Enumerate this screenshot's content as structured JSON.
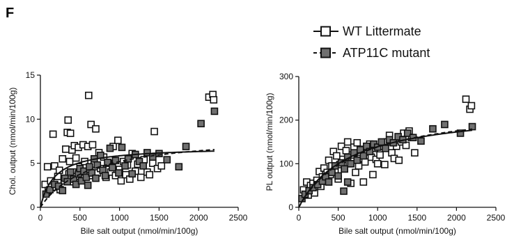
{
  "figure": {
    "panel_letter": "F"
  },
  "legend": [
    {
      "label": "WT Littermate",
      "fill": "#ffffff",
      "line": "solid"
    },
    {
      "label": "ATP11C mutant",
      "fill": "#707070",
      "line": "dashed"
    }
  ],
  "chart_data": [
    {
      "type": "scatter",
      "xlabel": "Bile salt output (nmol/min/100g)",
      "ylabel": "Chol. output (nmol/min/100g)",
      "xlim": [
        0,
        2500
      ],
      "ylim": [
        0,
        15
      ],
      "xticks": [
        0,
        500,
        1000,
        1500,
        2000,
        2500
      ],
      "yticks": [
        0,
        5,
        10,
        15
      ],
      "series": [
        {
          "name": "WT Littermate",
          "fill": "#ffffff",
          "points": [
            [
              60,
              2.6
            ],
            [
              90,
              4.6
            ],
            [
              100,
              1.9
            ],
            [
              130,
              3.0
            ],
            [
              160,
              8.3
            ],
            [
              180,
              4.7
            ],
            [
              200,
              2.3
            ],
            [
              220,
              3.5
            ],
            [
              240,
              4.2
            ],
            [
              250,
              2.0
            ],
            [
              280,
              5.5
            ],
            [
              300,
              3.0
            ],
            [
              320,
              6.6
            ],
            [
              340,
              8.5
            ],
            [
              350,
              9.9
            ],
            [
              360,
              3.8
            ],
            [
              370,
              5.2
            ],
            [
              380,
              8.4
            ],
            [
              400,
              6.5
            ],
            [
              410,
              4.0
            ],
            [
              420,
              2.9
            ],
            [
              430,
              7.0
            ],
            [
              450,
              5.6
            ],
            [
              460,
              3.5
            ],
            [
              480,
              6.8
            ],
            [
              500,
              4.6
            ],
            [
              520,
              3.3
            ],
            [
              540,
              7.1
            ],
            [
              560,
              5.2
            ],
            [
              580,
              4.1
            ],
            [
              600,
              6.9
            ],
            [
              610,
              12.7
            ],
            [
              620,
              3.6
            ],
            [
              640,
              9.4
            ],
            [
              660,
              7.1
            ],
            [
              680,
              4.9
            ],
            [
              700,
              8.9
            ],
            [
              720,
              3.9
            ],
            [
              740,
              6.2
            ],
            [
              760,
              4.4
            ],
            [
              800,
              5.7
            ],
            [
              830,
              3.4
            ],
            [
              860,
              5.0
            ],
            [
              890,
              4.0
            ],
            [
              920,
              6.9
            ],
            [
              950,
              3.6
            ],
            [
              980,
              7.6
            ],
            [
              1000,
              4.3
            ],
            [
              1020,
              3.0
            ],
            [
              1050,
              5.2
            ],
            [
              1080,
              3.7
            ],
            [
              1100,
              4.8
            ],
            [
              1130,
              3.2
            ],
            [
              1160,
              6.1
            ],
            [
              1200,
              4.1
            ],
            [
              1230,
              4.9
            ],
            [
              1270,
              3.4
            ],
            [
              1310,
              5.4
            ],
            [
              1350,
              4.0
            ],
            [
              1380,
              3.7
            ],
            [
              1420,
              5.0
            ],
            [
              1440,
              8.6
            ],
            [
              1480,
              4.4
            ],
            [
              1530,
              4.7
            ],
            [
              2130,
              12.5
            ],
            [
              2180,
              12.8
            ],
            [
              2190,
              12.2
            ]
          ]
        },
        {
          "name": "ATP11C mutant",
          "fill": "#707070",
          "points": [
            [
              70,
              1.5
            ],
            [
              120,
              2.0
            ],
            [
              180,
              2.6
            ],
            [
              230,
              2.4
            ],
            [
              280,
              1.9
            ],
            [
              310,
              3.3
            ],
            [
              340,
              2.9
            ],
            [
              380,
              4.0
            ],
            [
              420,
              3.2
            ],
            [
              450,
              2.6
            ],
            [
              480,
              3.8
            ],
            [
              500,
              4.4
            ],
            [
              520,
              3.0
            ],
            [
              550,
              4.1
            ],
            [
              580,
              3.4
            ],
            [
              600,
              2.5
            ],
            [
              620,
              4.6
            ],
            [
              650,
              3.9
            ],
            [
              680,
              5.5
            ],
            [
              700,
              3.3
            ],
            [
              720,
              4.8
            ],
            [
              760,
              5.9
            ],
            [
              790,
              4.2
            ],
            [
              820,
              3.6
            ],
            [
              850,
              5.1
            ],
            [
              880,
              6.7
            ],
            [
              910,
              4.5
            ],
            [
              950,
              5.3
            ],
            [
              990,
              3.9
            ],
            [
              1030,
              6.8
            ],
            [
              1070,
              4.7
            ],
            [
              1110,
              5.5
            ],
            [
              1160,
              3.8
            ],
            [
              1200,
              6.0
            ],
            [
              1250,
              5.2
            ],
            [
              1300,
              4.7
            ],
            [
              1350,
              6.2
            ],
            [
              1420,
              5.7
            ],
            [
              1500,
              6.1
            ],
            [
              1600,
              5.4
            ],
            [
              1750,
              4.6
            ],
            [
              1840,
              6.9
            ],
            [
              2030,
              9.5
            ],
            [
              2200,
              10.9
            ]
          ]
        }
      ],
      "fits": [
        {
          "name": "WT Littermate",
          "style": "solid",
          "ymax": 6.9,
          "k": 180
        },
        {
          "name": "ATP11C mutant",
          "style": "dashed",
          "ymax": 8.4,
          "k": 620
        }
      ]
    },
    {
      "type": "scatter",
      "xlabel": "Bile salt output (nmol/min/100g)",
      "ylabel": "PL output (nmol/min/100g)",
      "xlim": [
        0,
        2500
      ],
      "ylim": [
        0,
        300
      ],
      "xticks": [
        0,
        500,
        1000,
        1500,
        2000,
        2500
      ],
      "yticks": [
        0,
        100,
        200,
        300
      ],
      "series": [
        {
          "name": "WT Littermate",
          "fill": "#ffffff",
          "points": [
            [
              60,
              40
            ],
            [
              100,
              58
            ],
            [
              120,
              28
            ],
            [
              150,
              50
            ],
            [
              180,
              55
            ],
            [
              200,
              33
            ],
            [
              230,
              62
            ],
            [
              260,
              82
            ],
            [
              280,
              48
            ],
            [
              300,
              70
            ],
            [
              320,
              90
            ],
            [
              340,
              60
            ],
            [
              360,
              80
            ],
            [
              380,
              108
            ],
            [
              400,
              75
            ],
            [
              420,
              95
            ],
            [
              440,
              128
            ],
            [
              460,
              85
            ],
            [
              480,
              118
            ],
            [
              500,
              65
            ],
            [
              520,
              98
            ],
            [
              540,
              140
            ],
            [
              560,
              110
            ],
            [
              580,
              88
            ],
            [
              600,
              130
            ],
            [
              620,
              150
            ],
            [
              640,
              100
            ],
            [
              660,
              55
            ],
            [
              680,
              120
            ],
            [
              700,
              138
            ],
            [
              720,
              80
            ],
            [
              740,
              148
            ],
            [
              760,
              95
            ],
            [
              780,
              112
            ],
            [
              800,
              133
            ],
            [
              820,
              58
            ],
            [
              840,
              104
            ],
            [
              870,
              127
            ],
            [
              900,
              145
            ],
            [
              920,
              115
            ],
            [
              940,
              75
            ],
            [
              960,
              135
            ],
            [
              980,
              110
            ],
            [
              1000,
              100
            ],
            [
              1030,
              120
            ],
            [
              1060,
              140
            ],
            [
              1090,
              98
            ],
            [
              1120,
              150
            ],
            [
              1150,
              165
            ],
            [
              1180,
              125
            ],
            [
              1210,
              112
            ],
            [
              1240,
              140
            ],
            [
              1270,
              108
            ],
            [
              1300,
              150
            ],
            [
              1330,
              170
            ],
            [
              1360,
              142
            ],
            [
              1400,
              175
            ],
            [
              1430,
              160
            ],
            [
              1470,
              125
            ],
            [
              2120,
              248
            ],
            [
              2170,
              225
            ],
            [
              2190,
              233
            ]
          ]
        },
        {
          "name": "ATP11C mutant",
          "fill": "#707070",
          "points": [
            [
              40,
              20
            ],
            [
              80,
              30
            ],
            [
              130,
              38
            ],
            [
              180,
              45
            ],
            [
              240,
              52
            ],
            [
              300,
              60
            ],
            [
              340,
              70
            ],
            [
              380,
              58
            ],
            [
              420,
              80
            ],
            [
              460,
              95
            ],
            [
              500,
              72
            ],
            [
              540,
              102
            ],
            [
              580,
              88
            ],
            [
              620,
              115
            ],
            [
              660,
              100
            ],
            [
              700,
              125
            ],
            [
              740,
              108
            ],
            [
              780,
              132
            ],
            [
              820,
              118
            ],
            [
              860,
              140
            ],
            [
              900,
              128
            ],
            [
              950,
              145
            ],
            [
              1000,
              138
            ],
            [
              1050,
              150
            ],
            [
              1100,
              135
            ],
            [
              1150,
              155
            ],
            [
              1200,
              148
            ],
            [
              1260,
              162
            ],
            [
              1320,
              155
            ],
            [
              1380,
              170
            ],
            [
              1450,
              160
            ],
            [
              1550,
              152
            ],
            [
              1700,
              180
            ],
            [
              1850,
              190
            ],
            [
              2050,
              170
            ],
            [
              2200,
              185
            ],
            [
              570,
              37
            ],
            [
              620,
              58
            ]
          ]
        }
      ],
      "fits": [
        {
          "name": "WT Littermate",
          "style": "solid",
          "ymax": 228,
          "k": 640
        },
        {
          "name": "ATP11C mutant",
          "style": "dashed",
          "ymax": 238,
          "k": 720
        }
      ]
    }
  ]
}
